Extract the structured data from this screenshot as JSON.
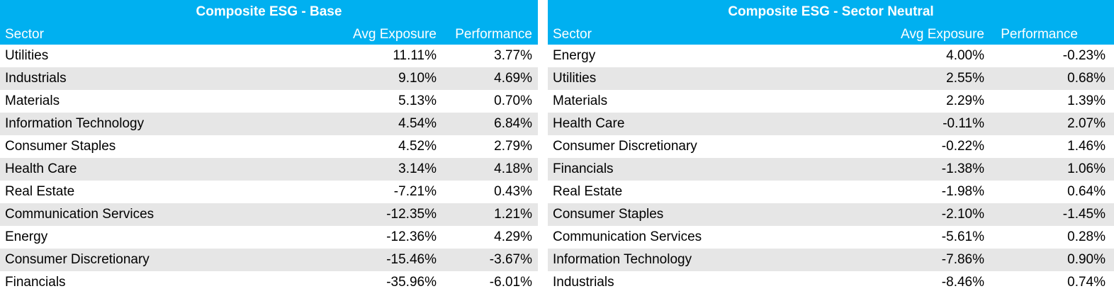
{
  "tables": [
    {
      "title": "Composite ESG - Base",
      "columns": {
        "sector": "Sector",
        "exposure": "Avg Exposure",
        "performance": "Performance"
      },
      "rows": [
        {
          "sector": "Utilities",
          "exposure": "11.11%",
          "performance": "3.77%"
        },
        {
          "sector": "Industrials",
          "exposure": "9.10%",
          "performance": "4.69%"
        },
        {
          "sector": "Materials",
          "exposure": "5.13%",
          "performance": "0.70%"
        },
        {
          "sector": "Information Technology",
          "exposure": "4.54%",
          "performance": "6.84%"
        },
        {
          "sector": "Consumer Staples",
          "exposure": "4.52%",
          "performance": "2.79%"
        },
        {
          "sector": "Health Care",
          "exposure": "3.14%",
          "performance": "4.18%"
        },
        {
          "sector": "Real Estate",
          "exposure": "-7.21%",
          "performance": "0.43%"
        },
        {
          "sector": "Communication Services",
          "exposure": "-12.35%",
          "performance": "1.21%"
        },
        {
          "sector": "Energy",
          "exposure": "-12.36%",
          "performance": "4.29%"
        },
        {
          "sector": "Consumer Discretionary",
          "exposure": "-15.46%",
          "performance": "-3.67%"
        },
        {
          "sector": "Financials",
          "exposure": "-35.96%",
          "performance": "-6.01%"
        }
      ]
    },
    {
      "title": "Composite ESG - Sector Neutral",
      "columns": {
        "sector": "Sector",
        "exposure": "Avg Exposure",
        "performance": "Performance"
      },
      "rows": [
        {
          "sector": "Energy",
          "exposure": "4.00%",
          "performance": "-0.23%"
        },
        {
          "sector": "Utilities",
          "exposure": "2.55%",
          "performance": "0.68%"
        },
        {
          "sector": "Materials",
          "exposure": "2.29%",
          "performance": "1.39%"
        },
        {
          "sector": "Health Care",
          "exposure": "-0.11%",
          "performance": "2.07%"
        },
        {
          "sector": "Consumer Discretionary",
          "exposure": "-0.22%",
          "performance": "1.46%"
        },
        {
          "sector": "Financials",
          "exposure": "-1.38%",
          "performance": "1.06%"
        },
        {
          "sector": "Real Estate",
          "exposure": "-1.98%",
          "performance": "0.64%"
        },
        {
          "sector": "Consumer Staples",
          "exposure": "-2.10%",
          "performance": "-1.45%"
        },
        {
          "sector": "Communication Services",
          "exposure": "-5.61%",
          "performance": "0.28%"
        },
        {
          "sector": "Information Technology",
          "exposure": "-7.86%",
          "performance": "0.90%"
        },
        {
          "sector": "Industrials",
          "exposure": "-8.46%",
          "performance": "0.74%"
        }
      ]
    }
  ],
  "colors": {
    "header_bg": "#00b0f0",
    "header_text": "#ffffff",
    "alt_row_bg": "#e6e6e6"
  }
}
